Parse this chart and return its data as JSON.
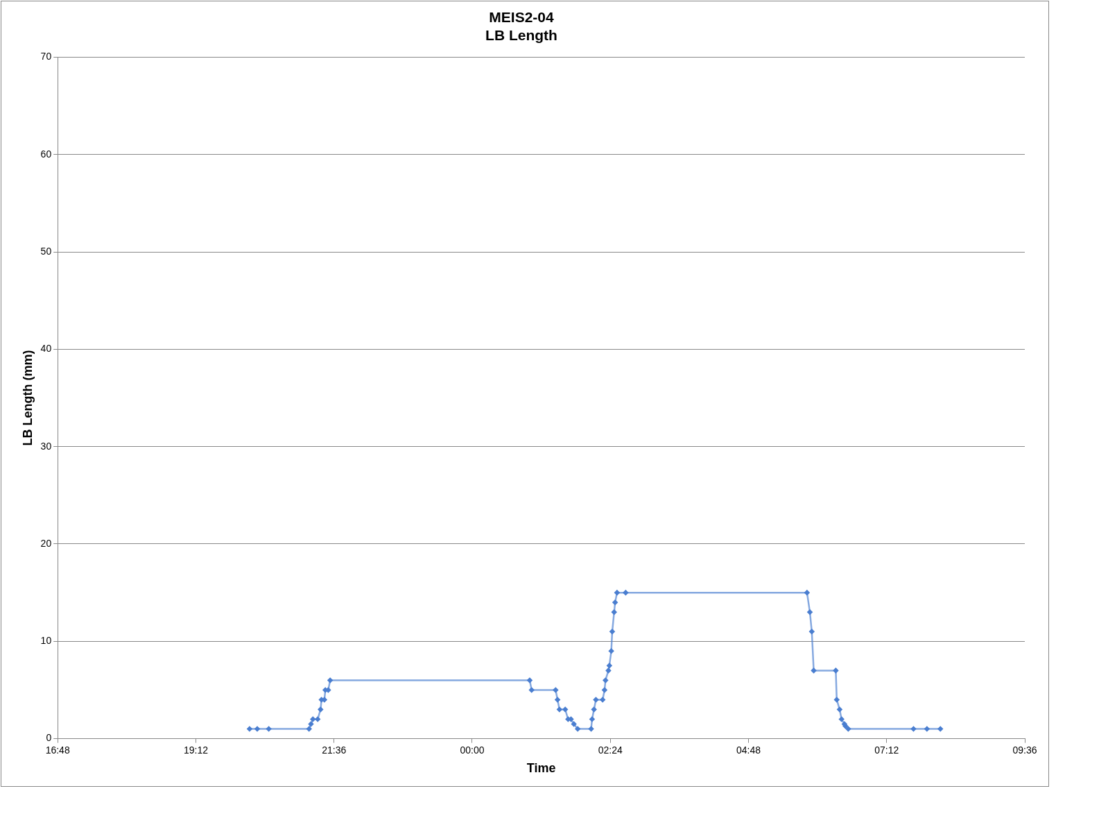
{
  "chart_data": {
    "type": "line",
    "title": "MEIS2-04\nLB Length",
    "xlabel": "Time",
    "ylabel": "LB Length (mm)",
    "xlim": [
      "2000-01-01T16:48",
      "2000-01-02T09:36"
    ],
    "xticks": [
      {
        "value": "2000-01-01T16:48",
        "label": "16:48"
      },
      {
        "value": "2000-01-01T19:12",
        "label": "19:12"
      },
      {
        "value": "2000-01-01T21:36",
        "label": "21:36"
      },
      {
        "value": "2000-01-02T00:00",
        "label": "00:00"
      },
      {
        "value": "2000-01-02T02:24",
        "label": "02:24"
      },
      {
        "value": "2000-01-02T04:48",
        "label": "04:48"
      },
      {
        "value": "2000-01-02T07:12",
        "label": "07:12"
      },
      {
        "value": "2000-01-02T09:36",
        "label": "09:36"
      }
    ],
    "ylim": [
      0,
      70
    ],
    "yticks": [
      0,
      10,
      20,
      30,
      40,
      50,
      60,
      70
    ],
    "grid": "y",
    "legend": false,
    "marker": "diamond",
    "line_style": "solid",
    "series": [
      {
        "color": "#4a7ed0",
        "x": [
          "2000-01-01T20:08",
          "2000-01-01T20:16",
          "2000-01-01T20:28",
          "2000-01-01T21:10",
          "2000-01-01T21:12",
          "2000-01-01T21:14",
          "2000-01-01T21:19",
          "2000-01-01T21:22",
          "2000-01-01T21:23",
          "2000-01-01T21:26",
          "2000-01-01T21:27",
          "2000-01-01T21:30",
          "2000-01-01T21:32",
          "2000-01-02T01:00",
          "2000-01-02T01:02",
          "2000-01-02T01:27",
          "2000-01-02T01:29",
          "2000-01-02T01:31",
          "2000-01-02T01:37",
          "2000-01-02T01:40",
          "2000-01-02T01:43",
          "2000-01-02T01:46",
          "2000-01-02T01:50",
          "2000-01-02T02:04",
          "2000-01-02T02:05",
          "2000-01-02T02:07",
          "2000-01-02T02:09",
          "2000-01-02T02:16",
          "2000-01-02T02:18",
          "2000-01-02T02:19",
          "2000-01-02T02:22",
          "2000-01-02T02:23",
          "2000-01-02T02:25",
          "2000-01-02T02:26",
          "2000-01-02T02:28",
          "2000-01-02T02:29",
          "2000-01-02T02:31",
          "2000-01-02T02:40",
          "2000-01-02T05:49",
          "2000-01-02T05:52",
          "2000-01-02T05:54",
          "2000-01-02T05:56",
          "2000-01-02T06:19",
          "2000-01-02T06:20",
          "2000-01-02T06:23",
          "2000-01-02T06:25",
          "2000-01-02T06:28",
          "2000-01-02T06:29",
          "2000-01-02T06:32",
          "2000-01-02T07:40",
          "2000-01-02T07:54",
          "2000-01-02T08:08"
        ],
        "values": [
          1,
          1,
          1,
          1,
          1.5,
          2,
          2,
          3,
          4,
          4,
          5,
          5,
          6,
          6,
          5,
          5,
          4,
          3,
          3,
          2,
          2,
          1.5,
          1,
          1,
          2,
          3,
          4,
          4,
          5,
          6,
          7,
          7.5,
          9,
          11,
          13,
          14,
          15,
          15,
          15,
          13,
          11,
          7,
          7,
          4,
          3,
          2,
          1.5,
          1.3,
          1,
          1,
          1,
          1
        ]
      }
    ]
  }
}
